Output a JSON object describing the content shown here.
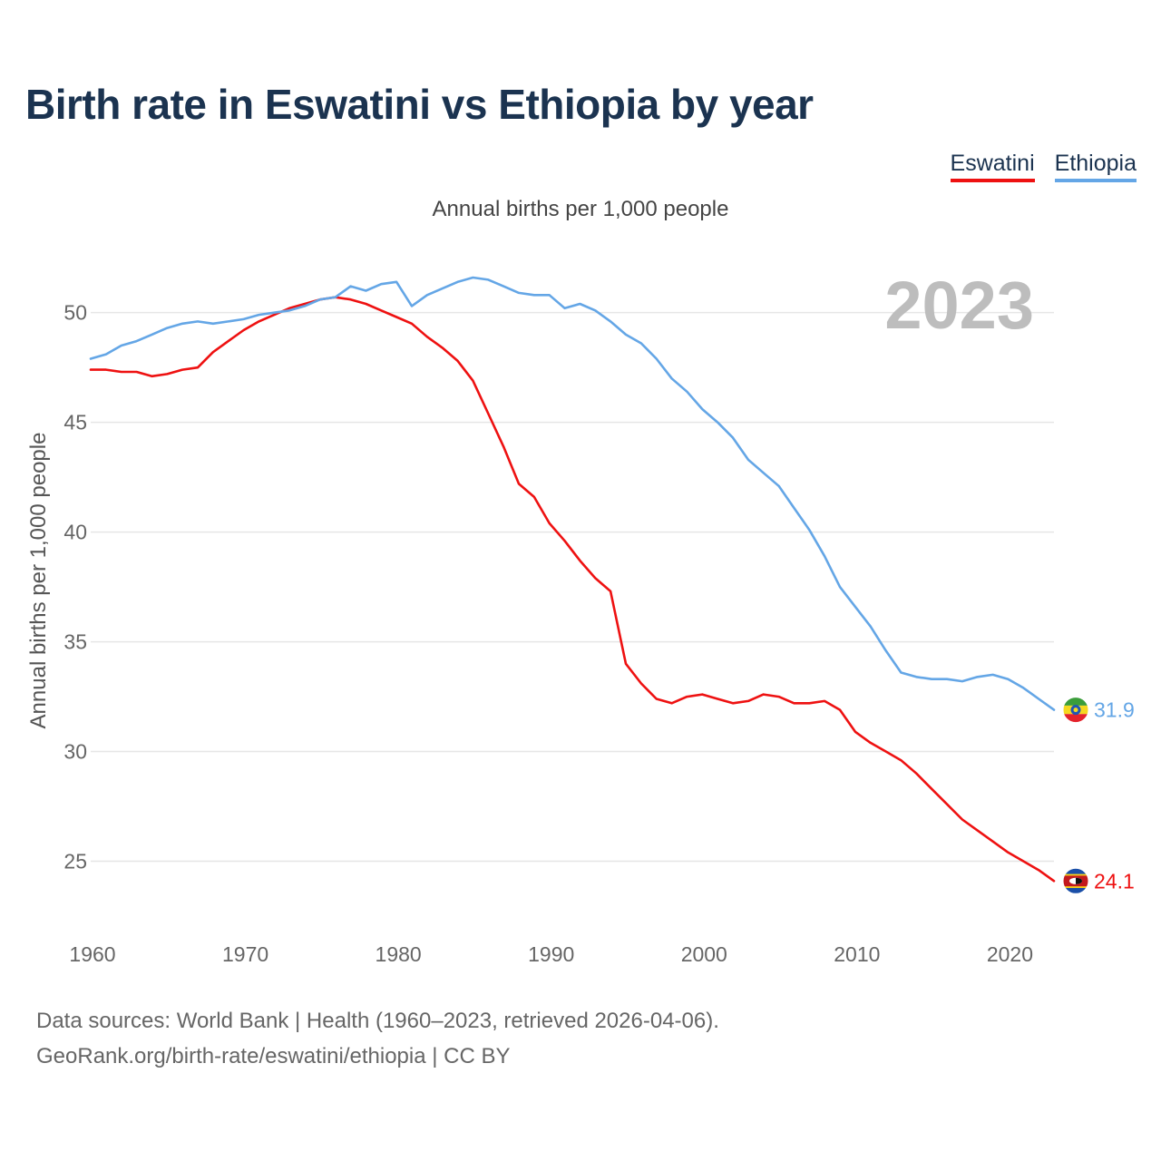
{
  "title": "Birth rate in Eswatini vs Ethiopia by year",
  "legend": [
    {
      "name": "Eswatini",
      "color": "#ee1111"
    },
    {
      "name": "Ethiopia",
      "color": "#64a6e6"
    }
  ],
  "subtitle": "Annual births per 1,000 people",
  "year_label": "2023",
  "footer": {
    "line1": "Data sources: World Bank | Health (1960–2023, retrieved 2026-04-06).",
    "line2": "GeoRank.org/birth-rate/eswatini/ethiopia | CC BY"
  },
  "chart_data": {
    "type": "line",
    "title": "Birth rate in Eswatini vs Ethiopia by year",
    "xlabel": "",
    "ylabel": "Annual births per 1,000 people",
    "xlim": [
      1960,
      2023
    ],
    "ylim": [
      22.5,
      53.5
    ],
    "grid": true,
    "x_ticks": [
      1960,
      1970,
      1980,
      1990,
      2000,
      2010,
      2020
    ],
    "y_ticks": [
      25,
      30,
      35,
      40,
      45,
      50
    ],
    "x": [
      1960,
      1961,
      1962,
      1963,
      1964,
      1965,
      1966,
      1967,
      1968,
      1969,
      1970,
      1971,
      1972,
      1973,
      1974,
      1975,
      1976,
      1977,
      1978,
      1979,
      1980,
      1981,
      1982,
      1983,
      1984,
      1985,
      1986,
      1987,
      1988,
      1989,
      1990,
      1991,
      1992,
      1993,
      1994,
      1995,
      1996,
      1997,
      1998,
      1999,
      2000,
      2001,
      2002,
      2003,
      2004,
      2005,
      2006,
      2007,
      2008,
      2009,
      2010,
      2011,
      2012,
      2013,
      2014,
      2015,
      2016,
      2017,
      2018,
      2019,
      2020,
      2021,
      2022,
      2023
    ],
    "series": [
      {
        "name": "Eswatini",
        "color": "#ee1111",
        "end_label": "24.1",
        "values": [
          47.4,
          47.4,
          47.3,
          47.3,
          47.1,
          47.2,
          47.4,
          47.5,
          48.2,
          48.7,
          49.2,
          49.6,
          49.9,
          50.2,
          50.4,
          50.6,
          50.7,
          50.6,
          50.4,
          50.1,
          49.8,
          49.5,
          48.9,
          48.4,
          47.8,
          46.9,
          45.4,
          43.9,
          42.2,
          41.6,
          40.4,
          39.6,
          38.7,
          37.9,
          37.3,
          34.0,
          33.1,
          32.4,
          32.2,
          32.5,
          32.6,
          32.4,
          32.2,
          32.3,
          32.6,
          32.5,
          32.2,
          32.2,
          32.3,
          31.9,
          30.9,
          30.4,
          30.0,
          29.6,
          29.0,
          28.3,
          27.6,
          26.9,
          26.4,
          25.9,
          25.4,
          25.0,
          24.6,
          24.1
        ]
      },
      {
        "name": "Ethiopia",
        "color": "#64a6e6",
        "end_label": "31.9",
        "values": [
          47.9,
          48.1,
          48.5,
          48.7,
          49.0,
          49.3,
          49.5,
          49.6,
          49.5,
          49.6,
          49.7,
          49.9,
          50.0,
          50.1,
          50.3,
          50.6,
          50.7,
          51.2,
          51.0,
          51.3,
          51.4,
          50.3,
          50.8,
          51.1,
          51.4,
          51.6,
          51.5,
          51.2,
          50.9,
          50.8,
          50.8,
          50.2,
          50.4,
          50.1,
          49.6,
          49.0,
          48.6,
          47.9,
          47.0,
          46.4,
          45.6,
          45.0,
          44.3,
          43.3,
          42.7,
          42.1,
          41.1,
          40.1,
          38.9,
          37.5,
          36.6,
          35.7,
          34.6,
          33.6,
          33.4,
          33.3,
          33.3,
          33.2,
          33.4,
          33.5,
          33.3,
          32.9,
          32.4,
          31.9
        ]
      }
    ]
  }
}
